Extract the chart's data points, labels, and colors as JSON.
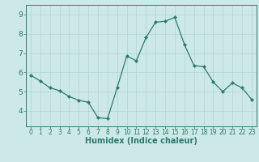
{
  "x": [
    0,
    1,
    2,
    3,
    4,
    5,
    6,
    7,
    8,
    9,
    10,
    11,
    12,
    13,
    14,
    15,
    16,
    17,
    18,
    19,
    20,
    21,
    22,
    23
  ],
  "y": [
    5.85,
    5.55,
    5.2,
    5.05,
    4.75,
    4.55,
    4.45,
    3.65,
    3.6,
    5.2,
    6.85,
    6.6,
    7.8,
    8.6,
    8.65,
    8.85,
    7.45,
    6.35,
    6.3,
    5.5,
    5.0,
    5.45,
    5.2,
    4.6
  ],
  "line_color": "#2d7a6e",
  "marker": "D",
  "marker_size": 2.0,
  "bg_color": "#cce9e7",
  "grid_color": "#b0d4d2",
  "axis_color": "#2d7a6e",
  "xlabel": "Humidex (Indice chaleur)",
  "xlim": [
    -0.5,
    23.5
  ],
  "ylim": [
    3.2,
    9.5
  ],
  "yticks": [
    4,
    5,
    6,
    7,
    8,
    9
  ],
  "xticks": [
    0,
    1,
    2,
    3,
    4,
    5,
    6,
    7,
    8,
    9,
    10,
    11,
    12,
    13,
    14,
    15,
    16,
    17,
    18,
    19,
    20,
    21,
    22,
    23
  ],
  "xlabel_fontsize": 7.0,
  "xtick_fontsize": 5.5,
  "ytick_fontsize": 6.5
}
